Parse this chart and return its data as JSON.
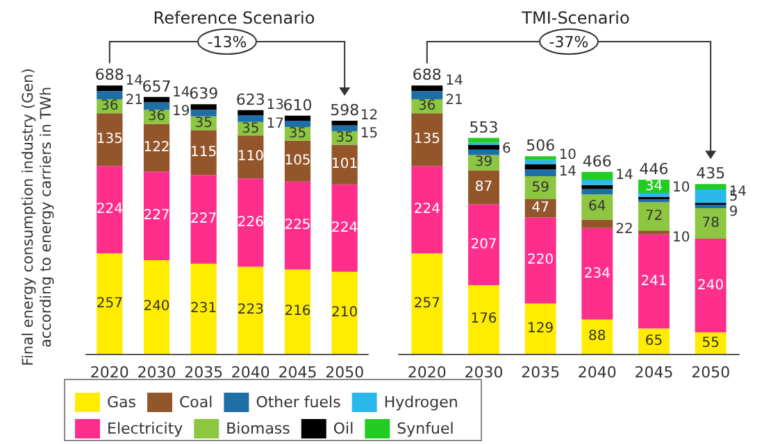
{
  "chart_data": [
    {
      "type": "bar",
      "stacked": true,
      "title": "Reference Scenario",
      "ylabel": "Final energy consumption industry (Gen) according to energy carriers in TWh",
      "categories": [
        "2020",
        "2030",
        "2035",
        "2040",
        "2045",
        "2050"
      ],
      "ylim": [
        0,
        700
      ],
      "tick_labels": "x",
      "legend": "bottom",
      "annotations": [
        "-13%"
      ],
      "totals": [
        "688",
        "657",
        "639",
        "623",
        "610",
        "598"
      ],
      "series": [
        {
          "name": "Gas",
          "color": "#ffec00",
          "values": [
            257,
            240,
            231,
            223,
            216,
            210
          ],
          "value_labels": [
            "257",
            "240",
            "231",
            "223",
            "216",
            "210"
          ]
        },
        {
          "name": "Electricity",
          "color": "#ff2d8c",
          "values": [
            224,
            227,
            227,
            226,
            225,
            224
          ],
          "value_labels": [
            "224",
            "227",
            "227",
            "226",
            "225",
            "224"
          ]
        },
        {
          "name": "Coal",
          "color": "#93562b",
          "values": [
            135,
            122,
            115,
            110,
            105,
            101
          ],
          "value_labels": [
            "135",
            "122",
            "115",
            "110",
            "105",
            "101"
          ]
        },
        {
          "name": "Biomass",
          "color": "#8dc640",
          "values": [
            36,
            36,
            35,
            35,
            35,
            35
          ],
          "value_labels": [
            "36",
            "36",
            "35",
            "35",
            "35",
            "35"
          ]
        },
        {
          "name": "Other fuels",
          "color": "#1e6fa8",
          "values": [
            21,
            19,
            17,
            17,
            16,
            15
          ],
          "value_labels": [
            "21",
            "19",
            null,
            "17",
            null,
            "15"
          ]
        },
        {
          "name": "Oil",
          "color": "#000000",
          "values": [
            14,
            14,
            14,
            13,
            13,
            12
          ],
          "value_labels": [
            "14",
            "14",
            null,
            "13",
            null,
            "12"
          ]
        },
        {
          "name": "Hydrogen",
          "color": "#2bb8ea",
          "values": [
            null,
            null,
            null,
            null,
            null,
            null
          ]
        },
        {
          "name": "Synfuel",
          "color": "#22cc22",
          "values": [
            null,
            null,
            null,
            null,
            null,
            null
          ]
        }
      ]
    },
    {
      "type": "bar",
      "stacked": true,
      "title": "TMI-Scenario",
      "categories": [
        "2020",
        "2030",
        "2035",
        "2040",
        "2045",
        "2050"
      ],
      "ylim": [
        0,
        700
      ],
      "tick_labels": "x",
      "annotations": [
        "-37%"
      ],
      "totals": [
        "688",
        "553",
        "506",
        "466",
        "446",
        "435"
      ],
      "series": [
        {
          "color": "#ffec00",
          "values": [
            257,
            176,
            129,
            88,
            65,
            55
          ],
          "value_labels": [
            "257",
            "176",
            "129",
            "88",
            "65",
            "55"
          ]
        },
        {
          "color": "#ff2d8c",
          "values": [
            224,
            207,
            220,
            234,
            241,
            240
          ],
          "value_labels": [
            "224",
            "207",
            "220",
            "234",
            "241",
            "240"
          ]
        },
        {
          "color": "#93562b",
          "values": [
            135,
            87,
            47,
            22,
            10,
            null
          ],
          "value_labels": [
            "135",
            "87",
            "47",
            "22",
            "10",
            null
          ]
        },
        {
          "color": "#8dc640",
          "values": [
            36,
            39,
            59,
            64,
            72,
            78
          ],
          "value_labels": [
            "36",
            "39",
            "59",
            "64",
            "72",
            "78"
          ]
        },
        {
          "color": "#1e6fa8",
          "values": [
            21,
            14,
            17,
            14,
            8,
            9
          ],
          "value_labels": [
            "21",
            null,
            null,
            null,
            null,
            "9"
          ]
        },
        {
          "color": "#000000",
          "values": [
            14,
            12,
            14,
            10,
            6,
            5
          ],
          "value_labels": [
            "14",
            null,
            "14",
            null,
            null,
            "5"
          ]
        },
        {
          "color": "#2bb8ea",
          "values": [
            null,
            6,
            10,
            14,
            10,
            34
          ],
          "value_labels": [
            null,
            "6",
            "10",
            "14",
            "10",
            null
          ]
        },
        {
          "color": "#22cc22",
          "values": [
            null,
            12,
            10,
            20,
            34,
            14
          ],
          "value_labels": [
            null,
            null,
            null,
            null,
            "34",
            "14"
          ]
        }
      ]
    }
  ]
}
